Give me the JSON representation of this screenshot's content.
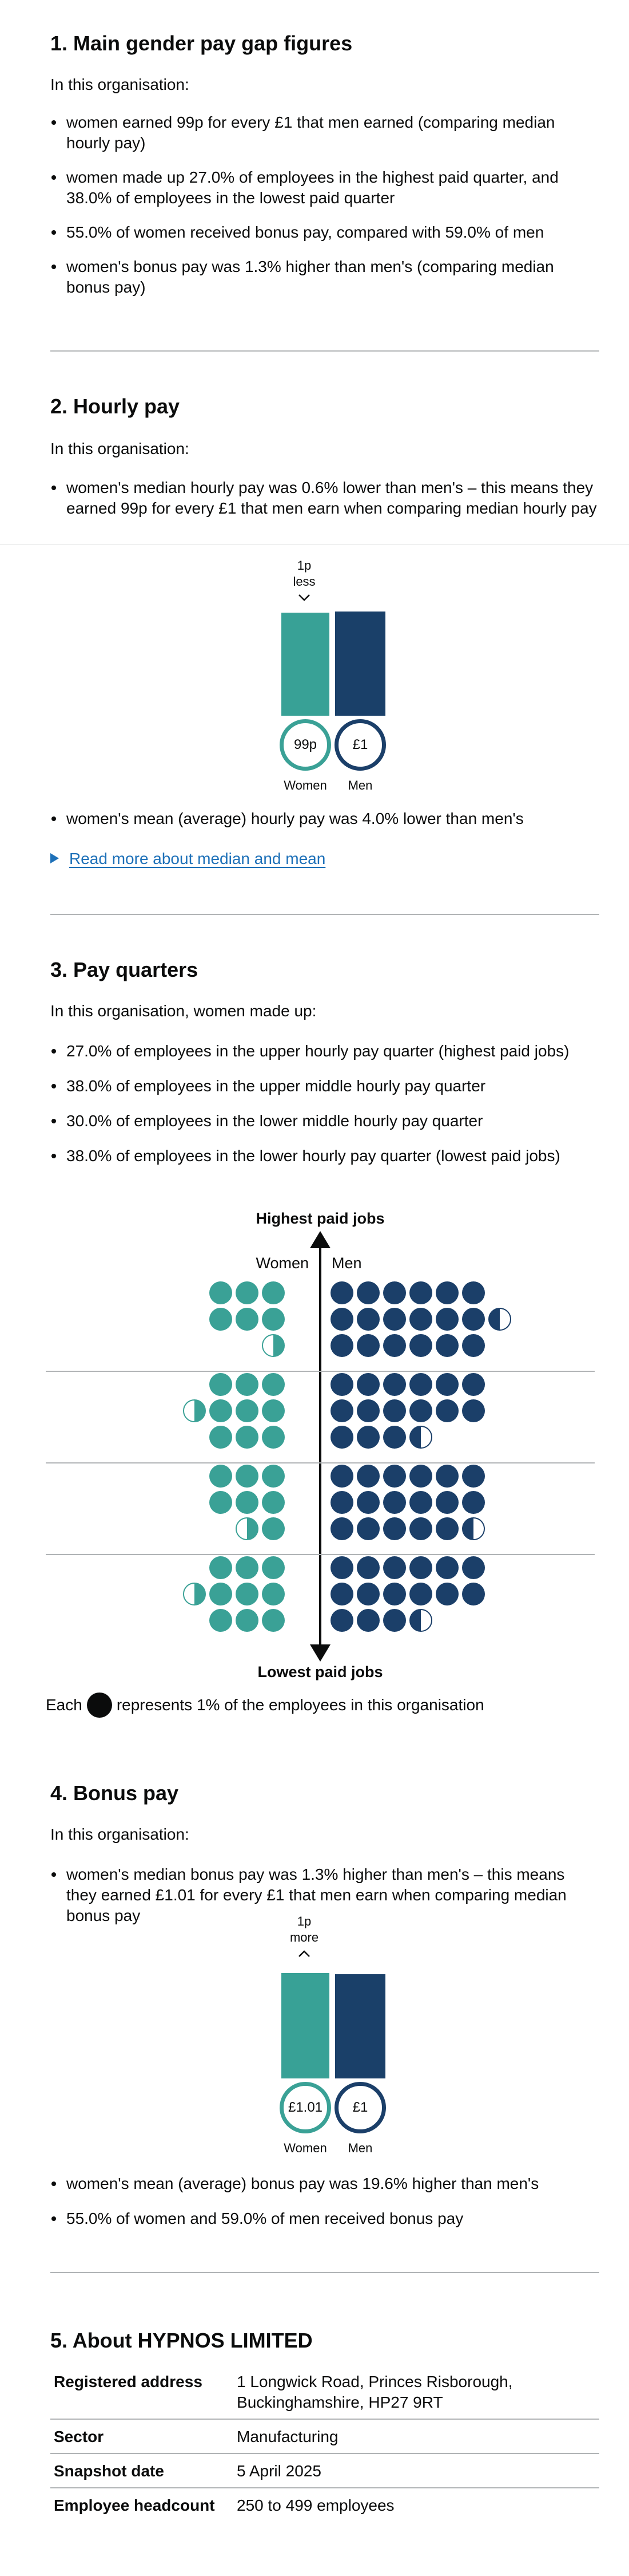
{
  "section1": {
    "heading": "1. Main gender pay gap figures",
    "intro": "In this organisation:",
    "bullets": [
      "women earned 99p for every £1 that men earned (comparing median hourly pay)",
      "women made up 27.0% of employees in the highest paid quarter, and 38.0% of employees in the lowest paid quarter",
      "55.0% of women received bonus pay, compared with 59.0% of men",
      "women's bonus pay was 1.3% higher than men's (comparing median bonus pay)"
    ]
  },
  "section2": {
    "heading": "2. Hourly pay",
    "intro": "In this organisation:",
    "bullet_median": "women's median hourly pay was 0.6% lower than men's – this means they earned 99p for every £1 that men earn when comparing median hourly pay",
    "gap_label_line1": "1p",
    "gap_label_line2": "less",
    "women_value": "99p",
    "men_value": "£1",
    "women_label": "Women",
    "men_label": "Men",
    "women_ratio": 0.99,
    "bullet_mean": "women's mean (average) hourly pay was 4.0% lower than men's",
    "details_link": "Read more about median and mean"
  },
  "section3": {
    "heading": "3. Pay quarters",
    "intro": "In this organisation, women made up:",
    "bullets": [
      "27.0% of employees in the upper hourly pay quarter (highest paid jobs)",
      "38.0% of employees in the upper middle hourly pay quarter",
      "30.0% of employees in the lower middle hourly pay quarter",
      "38.0% of employees in the lower hourly pay quarter (lowest paid jobs)"
    ],
    "top_label": "Highest paid jobs",
    "bottom_label": "Lowest paid jobs",
    "women_label": "Women",
    "men_label": "Men",
    "key_before": "Each",
    "key_after": "represents 1% of the employees in this organisation",
    "quarters_women_dots": [
      6.5,
      9.5,
      7.5,
      9.5
    ],
    "quarters_men_dots": [
      18.5,
      15.5,
      17.5,
      15.5
    ]
  },
  "section4": {
    "heading": "4. Bonus pay",
    "intro": "In this organisation:",
    "bullet_median": "women's median bonus pay was 1.3% higher than men's – this means they earned £1.01 for every £1 that men earn when comparing median bonus pay",
    "gap_label_line1": "1p",
    "gap_label_line2": "more",
    "women_value": "£1.01",
    "men_value": "£1",
    "women_label": "Women",
    "men_label": "Men",
    "women_ratio": 1.01,
    "bullets_after": [
      "women's mean (average) bonus pay was 19.6% higher than men's",
      "55.0% of women and 59.0% of men received bonus pay"
    ]
  },
  "section5": {
    "heading": "5. About HYPNOS LIMITED",
    "rows": [
      {
        "label": "Registered address",
        "value": "1 Longwick Road, Princes Risborough, Buckinghamshire, HP27 9RT"
      },
      {
        "label": "Sector",
        "value": "Manufacturing"
      },
      {
        "label": "Snapshot date",
        "value": "5 April 2025"
      },
      {
        "label": "Employee headcount",
        "value": "250 to 499 employees"
      }
    ]
  },
  "colors": {
    "women": "#3aa196",
    "men": "#1b3f69",
    "link": "#1d70b8"
  }
}
